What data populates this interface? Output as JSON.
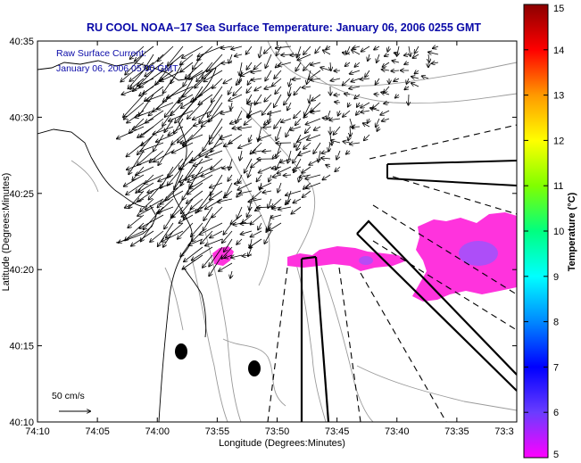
{
  "title": "RU COOL  NOAA–17  Sea Surface Temperature:  January 06, 2006 0255 GMT",
  "subtitle_line1": "Raw Surface Current:",
  "subtitle_line2": "January 06, 2006 05:00 GMT",
  "scale_label": "50 cm/s",
  "x_axis_label": "Longitude (Degrees:Minutes)",
  "y_axis_label": "Latitude (Degrees:Minutes)",
  "x_ticks": [
    "74:10",
    "74:05",
    "74:00",
    "73:55",
    "73:50",
    "73:45",
    "73:40",
    "73:35",
    "73:3"
  ],
  "y_ticks": [
    "40:35",
    "40:30",
    "40:25",
    "40:20",
    "40:15",
    "40:10"
  ],
  "colorbar": {
    "label": "Temperature (°C)",
    "ticks": [
      "15",
      "14",
      "13",
      "12",
      "11",
      "10",
      "9",
      "8",
      "7",
      "6",
      "5"
    ],
    "range": [
      5,
      15
    ],
    "colors": [
      "#ff00ff",
      "#6a3cff",
      "#0000ff",
      "#0088ff",
      "#00ffff",
      "#00ff80",
      "#80ff00",
      "#ffff00",
      "#ff9900",
      "#ff0000",
      "#8b0000"
    ]
  },
  "sst_patch_color": "#ff33dd",
  "sst_patch_accent": "#9955ff"
}
